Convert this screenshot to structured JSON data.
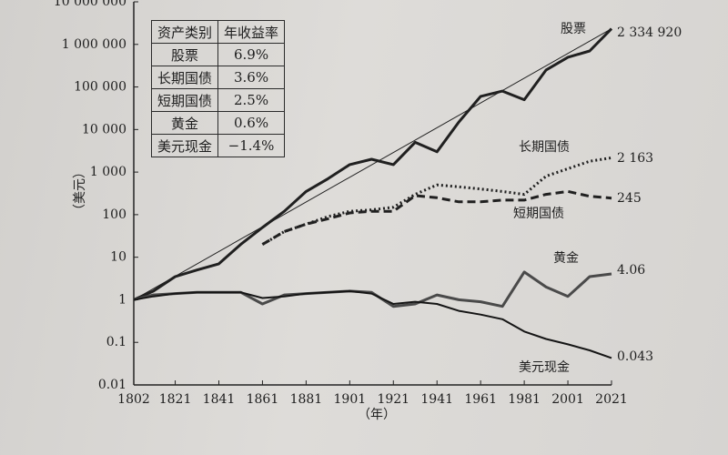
{
  "chart_data": {
    "type": "line",
    "log_scale": true,
    "x_label": "（年）",
    "y_label": "（美元）",
    "x": [
      1802,
      1811,
      1821,
      1831,
      1841,
      1851,
      1861,
      1871,
      1881,
      1891,
      1901,
      1911,
      1921,
      1931,
      1941,
      1951,
      1961,
      1971,
      1981,
      1991,
      2001,
      2011,
      2021
    ],
    "xlim": [
      1802,
      2021
    ],
    "xticks": [
      1802,
      1821,
      1841,
      1861,
      1881,
      1901,
      1921,
      1941,
      1961,
      1981,
      2001,
      2021
    ],
    "ylim": [
      0.01,
      10000000
    ],
    "yticks": [
      0.01,
      0.1,
      1,
      10,
      100,
      {
        "value": 1000,
        "label": "1 000"
      },
      {
        "value": 10000,
        "label": "10 000"
      },
      {
        "value": 100000,
        "label": "100 000"
      },
      {
        "value": 1000000,
        "label": "1 000 000"
      },
      {
        "value": 10000000,
        "label": "10 000 000"
      }
    ],
    "series": [
      {
        "name": "股票",
        "color": "#202020",
        "style": "solid",
        "width": 3,
        "values": [
          1,
          1.6,
          3.5,
          5,
          7,
          20,
          50,
          120,
          350,
          700,
          1500,
          2000,
          1500,
          5000,
          3000,
          15000,
          60000,
          80000,
          50000,
          250000,
          500000,
          700000,
          2334920
        ],
        "value_labels": [
          null,
          null,
          null,
          null,
          null,
          null,
          null,
          null,
          null,
          null,
          null,
          null,
          null,
          null,
          null,
          null,
          null,
          null,
          null,
          null,
          null,
          null,
          "2 334 920"
        ]
      },
      {
        "name": "长期国债",
        "color": "#202020",
        "style": "dotted",
        "width": 3,
        "values": [
          null,
          null,
          null,
          null,
          null,
          null,
          20,
          40,
          60,
          90,
          120,
          130,
          150,
          300,
          500,
          450,
          400,
          350,
          300,
          800,
          1200,
          1800,
          2163
        ],
        "value_labels": [
          null,
          null,
          null,
          null,
          null,
          null,
          null,
          null,
          null,
          null,
          null,
          null,
          null,
          null,
          null,
          null,
          null,
          null,
          null,
          null,
          null,
          null,
          "2 163"
        ]
      },
      {
        "name": "短期国债",
        "color": "#202020",
        "style": "dashed",
        "width": 3,
        "values": [
          null,
          null,
          null,
          null,
          null,
          null,
          20,
          40,
          60,
          80,
          110,
          120,
          120,
          280,
          250,
          200,
          200,
          220,
          220,
          300,
          350,
          270,
          245
        ],
        "value_labels": [
          null,
          null,
          null,
          null,
          null,
          null,
          null,
          null,
          null,
          null,
          null,
          null,
          null,
          null,
          null,
          null,
          null,
          null,
          null,
          null,
          null,
          null,
          "245"
        ]
      },
      {
        "name": "黄金",
        "color": "#4a4a4a",
        "style": "solid",
        "width": 3,
        "values": [
          1,
          1.3,
          1.4,
          1.5,
          1.5,
          1.5,
          0.8,
          1.3,
          1.4,
          1.5,
          1.6,
          1.5,
          0.7,
          0.8,
          1.3,
          1.0,
          0.9,
          0.7,
          4.5,
          2,
          1.2,
          3.5,
          4.06
        ],
        "value_labels": [
          null,
          null,
          null,
          null,
          null,
          null,
          null,
          null,
          null,
          null,
          null,
          null,
          null,
          null,
          null,
          null,
          null,
          null,
          null,
          null,
          null,
          null,
          "4.06"
        ]
      },
      {
        "name": "美元现金",
        "color": "#151515",
        "style": "solid",
        "width": 2,
        "values": [
          1,
          1.2,
          1.4,
          1.5,
          1.5,
          1.5,
          1.1,
          1.2,
          1.4,
          1.5,
          1.6,
          1.4,
          0.8,
          0.9,
          0.8,
          0.55,
          0.45,
          0.35,
          0.18,
          0.12,
          0.09,
          0.065,
          0.043
        ],
        "value_labels": [
          null,
          null,
          null,
          null,
          null,
          null,
          null,
          null,
          null,
          null,
          null,
          null,
          null,
          null,
          null,
          null,
          null,
          null,
          null,
          null,
          null,
          null,
          "0.043"
        ]
      }
    ],
    "trend_line": {
      "x": [
        1802,
        2021
      ],
      "values": [
        1,
        2334920
      ],
      "color": "#202020"
    }
  },
  "table": {
    "header": [
      "资产类别",
      "年收益率"
    ],
    "rows": [
      [
        "股票",
        "6.9%"
      ],
      [
        "长期国债",
        "3.6%"
      ],
      [
        "短期国债",
        "2.5%"
      ],
      [
        "黄金",
        "0.6%"
      ],
      [
        "美元现金",
        "−1.4%"
      ]
    ]
  }
}
